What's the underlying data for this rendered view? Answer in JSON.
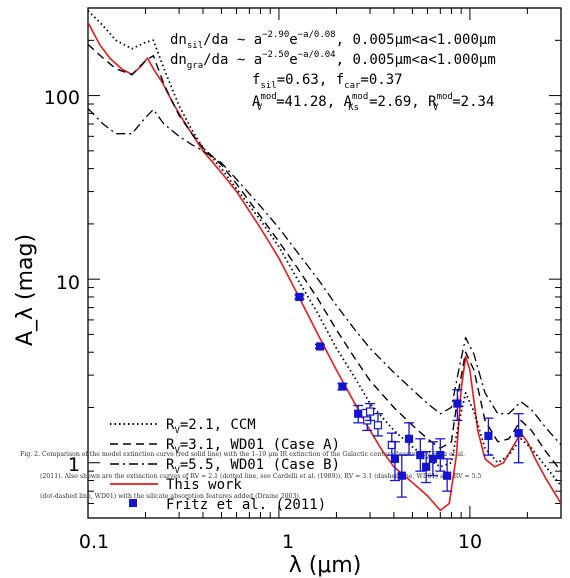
{
  "chart_data": {
    "type": "line",
    "x_scale": "log",
    "y_scale": "log",
    "xlim": [
      0.1,
      30
    ],
    "ylim": [
      0.5,
      300
    ],
    "xlabel": "λ (μm)",
    "ylabel": "A_λ (mag)",
    "x_ticks": [
      "0.1",
      "1",
      "10"
    ],
    "y_ticks": [
      "1",
      "10",
      "100"
    ],
    "annotations": {
      "line1": {
        "lhs": "dn",
        "lhs_sub": "sil",
        "mid": "/da ~ a",
        "exp": "−2.90",
        "mid2": "e",
        "exp2": "−a/0.08",
        "rhs": ",  0.005μm<a<1.000μm"
      },
      "line2": {
        "lhs": "dn",
        "lhs_sub": "gra",
        "mid": "/da ~ a",
        "exp": "−2.50",
        "mid2": "e",
        "exp2": "−a/0.04",
        "rhs": ",  0.005μm<a<1.000μm"
      },
      "line3": {
        "a": "f",
        "a_sub": "sil",
        "a_val": "=0.63,  ",
        "b": "f",
        "b_sub": "car",
        "b_val": "=0.37"
      },
      "line4": {
        "a": "A",
        "a_sup": "mod",
        "a_sub": "V",
        "a_val": "=41.28,  ",
        "b": "A",
        "b_sup": "mod",
        "b_sub": "Ks",
        "b_val": "=2.69,  ",
        "c": "R",
        "c_sup": "mod",
        "c_sub": "V",
        "c_val": "=2.34"
      }
    },
    "legend": [
      {
        "label_pre": "R",
        "label_sub": "V",
        "label_post": "=2.1, CCM",
        "style": "dotted"
      },
      {
        "label_pre": "R",
        "label_sub": "V",
        "label_post": "=3.1, WD01 (Case A)",
        "style": "dashed"
      },
      {
        "label_pre": "R",
        "label_sub": "V",
        "label_post": "=5.5, WD01 (Case B)",
        "style": "dash-dot"
      },
      {
        "label_pre": "",
        "label_sub": "",
        "label_post": "This work",
        "style": "solid-red"
      },
      {
        "label_pre": "",
        "label_sub": "",
        "label_post": "Fritz et al. (2011)",
        "style": "marker-blue"
      }
    ],
    "caption_lines": [
      "Fig. 2.    Comparison of the model extinction curve (red solid line) with the 1–19 μm IR extinction of the Galactic center observed by Fritz et al.",
      "(2011). Also shown are the extinction curves of RV = 2.1 (dotted line, see Cardelli et al. (1989)), RV = 3.1 (dashed line, WD01) and RV = 5.5",
      "(dot-dashed line, WD01) with the silicate absorption features added (Draine 2003)."
    ],
    "series": [
      {
        "name": "This work",
        "color": "#e8191a",
        "style": "solid",
        "x": [
          0.1,
          0.115,
          0.13,
          0.15,
          0.17,
          0.19,
          0.205,
          0.22,
          0.245,
          0.28,
          0.33,
          0.4,
          0.5,
          0.6,
          0.8,
          1.0,
          1.25,
          1.6,
          2.0,
          2.5,
          3.0,
          3.5,
          4.0,
          5.0,
          6.0,
          7.0,
          7.8,
          8.5,
          9.0,
          9.5,
          10.0,
          11.0,
          12.0,
          13.5,
          15.0,
          17.0,
          18.5,
          20.0,
          22.0,
          25.0,
          30.0
        ],
        "y": [
          250,
          190,
          160,
          140,
          130,
          145,
          160,
          140,
          118,
          90,
          68,
          50,
          38,
          30,
          19,
          13,
          8.3,
          5.0,
          3.2,
          2.1,
          1.5,
          1.15,
          0.95,
          0.78,
          0.66,
          0.55,
          0.6,
          1.1,
          2.5,
          3.8,
          3.2,
          1.5,
          1.05,
          0.95,
          1.0,
          1.25,
          1.45,
          1.3,
          1.05,
          0.82,
          0.6
        ]
      },
      {
        "name": "",
        "color": "#000000",
        "style": "dotted",
        "x": [
          0.1,
          0.12,
          0.14,
          0.17,
          0.2,
          0.22,
          0.25,
          0.3,
          0.35,
          0.4,
          0.5,
          0.6,
          0.8,
          1.0,
          1.25,
          1.6,
          2.0,
          2.5,
          3.0,
          4.0,
          5.0,
          6.0,
          7.0,
          8.0,
          8.8,
          9.5,
          10.5,
          12.0,
          14.0,
          16.0,
          18.5,
          21.0,
          25.0,
          30.0
        ],
        "y": [
          290,
          240,
          200,
          180,
          195,
          200,
          140,
          88,
          65,
          52,
          40,
          31,
          21,
          15,
          10,
          6.5,
          4.2,
          2.9,
          2.1,
          1.5,
          1.22,
          1.05,
          0.95,
          1.0,
          1.7,
          2.4,
          1.9,
          1.2,
          1.0,
          1.1,
          1.35,
          1.2,
          0.95,
          0.75
        ]
      },
      {
        "name": "",
        "color": "#000000",
        "style": "dashed",
        "x": [
          0.1,
          0.12,
          0.14,
          0.17,
          0.2,
          0.22,
          0.25,
          0.3,
          0.35,
          0.4,
          0.5,
          0.6,
          0.8,
          1.0,
          1.25,
          1.6,
          2.0,
          2.5,
          3.0,
          4.0,
          5.0,
          6.0,
          7.0,
          8.0,
          8.8,
          9.5,
          10.5,
          12.0,
          14.0,
          16.0,
          18.5,
          21.0,
          25.0,
          30.0
        ],
        "y": [
          190,
          160,
          140,
          130,
          155,
          165,
          115,
          78,
          62,
          52,
          42,
          33,
          22,
          16,
          11.5,
          7.8,
          5.3,
          3.7,
          2.8,
          2.0,
          1.6,
          1.35,
          1.2,
          1.3,
          2.6,
          4.0,
          3.2,
          1.7,
          1.3,
          1.35,
          1.7,
          1.5,
          1.15,
          0.9
        ]
      },
      {
        "name": "",
        "color": "#000000",
        "style": "dash-dot",
        "x": [
          0.1,
          0.12,
          0.14,
          0.17,
          0.2,
          0.22,
          0.25,
          0.3,
          0.35,
          0.4,
          0.5,
          0.6,
          0.8,
          1.0,
          1.25,
          1.6,
          2.0,
          2.5,
          3.0,
          4.0,
          5.0,
          6.0,
          7.0,
          8.0,
          8.8,
          9.5,
          10.5,
          12.0,
          14.0,
          16.0,
          18.5,
          21.0,
          25.0,
          30.0
        ],
        "y": [
          85,
          70,
          62,
          62,
          76,
          84,
          70,
          60,
          54,
          50,
          43,
          35,
          25,
          19,
          14,
          10,
          7.2,
          5.3,
          4.2,
          3.1,
          2.5,
          2.1,
          1.85,
          2.0,
          3.3,
          4.8,
          3.9,
          2.4,
          1.85,
          1.85,
          2.15,
          1.95,
          1.55,
          1.25
        ]
      },
      {
        "name": "Fritz et al. (2011)",
        "color": "#1515d0",
        "style": "points",
        "points": [
          {
            "x": 1.28,
            "y": 8.0,
            "lo": 7.8,
            "hi": 8.2,
            "fill": true
          },
          {
            "x": 1.64,
            "y": 4.3,
            "lo": 4.2,
            "hi": 4.4,
            "fill": true
          },
          {
            "x": 2.15,
            "y": 2.6,
            "lo": 2.5,
            "hi": 2.7,
            "fill": true
          },
          {
            "x": 2.6,
            "y": 1.85,
            "lo": 1.65,
            "hi": 2.05,
            "fill": true
          },
          {
            "x": 2.9,
            "y": 1.7,
            "lo": 1.5,
            "hi": 1.95,
            "fill": false
          },
          {
            "x": 3.0,
            "y": 1.9,
            "lo": 1.7,
            "hi": 2.1,
            "fill": false
          },
          {
            "x": 3.3,
            "y": 1.6,
            "lo": 1.4,
            "hi": 1.85,
            "fill": false
          },
          {
            "x": 3.9,
            "y": 1.25,
            "lo": 1.1,
            "hi": 1.45,
            "fill": false
          },
          {
            "x": 4.05,
            "y": 1.05,
            "lo": 0.8,
            "hi": 1.3,
            "fill": true
          },
          {
            "x": 4.4,
            "y": 0.85,
            "lo": 0.65,
            "hi": 1.1,
            "fill": true
          },
          {
            "x": 4.8,
            "y": 1.35,
            "lo": 1.1,
            "hi": 1.65,
            "fill": true
          },
          {
            "x": 5.5,
            "y": 1.1,
            "lo": 0.9,
            "hi": 1.35,
            "fill": true
          },
          {
            "x": 5.9,
            "y": 0.95,
            "lo": 0.78,
            "hi": 1.15,
            "fill": true
          },
          {
            "x": 6.4,
            "y": 1.05,
            "lo": 0.85,
            "hi": 1.3,
            "fill": true
          },
          {
            "x": 7.0,
            "y": 1.1,
            "lo": 0.9,
            "hi": 1.35,
            "fill": true
          },
          {
            "x": 7.6,
            "y": 0.85,
            "lo": 0.7,
            "hi": 1.05,
            "fill": true
          },
          {
            "x": 8.6,
            "y": 2.1,
            "lo": 1.7,
            "hi": 2.5,
            "fill": true
          },
          {
            "x": 12.5,
            "y": 1.4,
            "lo": 1.1,
            "hi": 1.75,
            "fill": true
          },
          {
            "x": 18.0,
            "y": 1.45,
            "lo": 1.0,
            "hi": 1.85,
            "fill": true
          }
        ]
      }
    ]
  }
}
